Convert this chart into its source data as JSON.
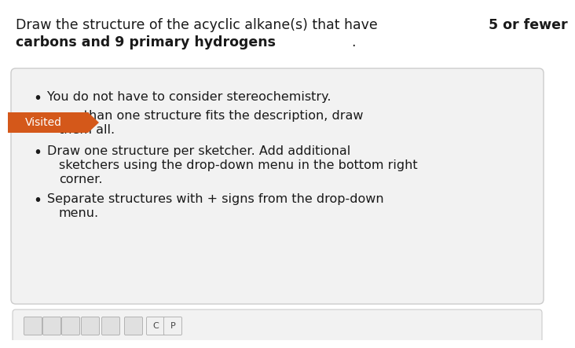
{
  "bg_color": "#ffffff",
  "page_bg": "#ffffff",
  "card_bg": "#f2f2f2",
  "card_border": "#cccccc",
  "text_color": "#1a1a1a",
  "visited_color": "#d4581a",
  "visited_text_color": "#ffffff",
  "visited_label": "Visited",
  "title_line1_normal": "Draw the structure of the acyclic alkane(s) that have ",
  "title_line1_bold": "5 or fewer",
  "title_line2_bold": "carbons and 9 primary hydrogens",
  "title_line2_end": ".",
  "bullet1": "You do not have to consider stereochemistry.",
  "bullet2a": "more than one structure fits the description, draw",
  "bullet2b": "them all.",
  "bullet3a": "Draw one structure per sketcher. Add additional",
  "bullet3b": "sketchers using the drop-down menu in the bottom right",
  "bullet3c": "corner.",
  "bullet4a": "Separate structures with + signs from the drop-down",
  "bullet4b": "menu.",
  "font_size_title": 12.5,
  "font_size_body": 11.5
}
